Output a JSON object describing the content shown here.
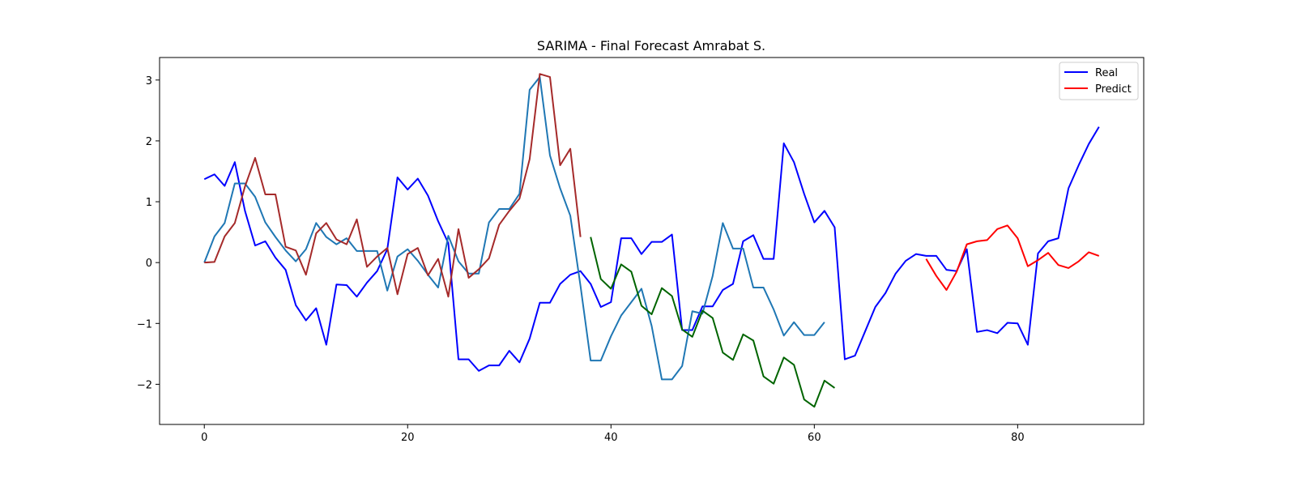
{
  "chart_data": {
    "type": "line",
    "title": "SARIMA - Final Forecast Amrabat S.",
    "xlabel": "",
    "ylabel": "",
    "xlim": [
      -4.4,
      92.4
    ],
    "ylim": [
      -2.66,
      3.37
    ],
    "xticks": [
      0,
      20,
      40,
      60,
      80
    ],
    "yticks": [
      -2,
      -1,
      0,
      1,
      2,
      3
    ],
    "grid": false,
    "legend": {
      "placement": "top-right",
      "entries": [
        "Real",
        "Predict"
      ]
    },
    "series": [
      {
        "name": "Real",
        "color": "#0000ff",
        "x_start": 0,
        "values": [
          1.37,
          1.45,
          1.26,
          1.65,
          0.85,
          0.28,
          0.35,
          0.08,
          -0.12,
          -0.7,
          -0.95,
          -0.75,
          -1.35,
          -0.36,
          -0.37,
          -0.56,
          -0.33,
          -0.14,
          0.22,
          1.4,
          1.2,
          1.38,
          1.1,
          0.68,
          0.32,
          -1.59,
          -1.59,
          -1.78,
          -1.69,
          -1.69,
          -1.45,
          -1.64,
          -1.25,
          -0.66,
          -0.66,
          -0.35,
          -0.2,
          -0.14,
          -0.35,
          -0.73,
          -0.65,
          0.4,
          0.4,
          0.14,
          0.34,
          0.34,
          0.46,
          -1.11,
          -1.11,
          -0.72,
          -0.72,
          -0.45,
          -0.35,
          0.35,
          0.45,
          0.06,
          0.06,
          1.96,
          1.65,
          1.13,
          0.66,
          0.85,
          0.58,
          -1.59,
          -1.53,
          -1.13,
          -0.73,
          -0.5,
          -0.18,
          0.03,
          0.14,
          0.11,
          0.11,
          -0.12,
          -0.14,
          0.22,
          -1.14,
          -1.11,
          -1.16,
          -0.99,
          -1.0,
          -1.35,
          0.15,
          0.35,
          0.4,
          1.22,
          1.6,
          1.95,
          2.23
        ]
      },
      {
        "name": "Predict",
        "color": "#ff0000",
        "x_start": 71,
        "values": [
          0.06,
          -0.22,
          -0.45,
          -0.15,
          0.3,
          0.35,
          0.37,
          0.55,
          0.61,
          0.4,
          -0.06,
          0.04,
          0.16,
          -0.04,
          -0.09,
          0.02,
          0.17,
          0.11
        ]
      },
      {
        "color": "#1f77b4",
        "x_start": 0,
        "values": [
          0.0,
          0.43,
          0.65,
          1.3,
          1.3,
          1.08,
          0.66,
          0.42,
          0.2,
          0.02,
          0.22,
          0.65,
          0.42,
          0.3,
          0.4,
          0.19,
          0.19,
          0.19,
          -0.46,
          0.1,
          0.22,
          0.03,
          -0.2,
          -0.41,
          0.44,
          0.02,
          -0.18,
          -0.18,
          0.66,
          0.88,
          0.88,
          1.13,
          2.84,
          3.05,
          1.76,
          1.22,
          0.77,
          -0.38,
          -1.61,
          -1.61,
          -1.21,
          -0.87,
          -0.65,
          -0.43,
          -1.04,
          -1.92,
          -1.92,
          -1.7,
          -0.8,
          -0.84,
          -0.22,
          0.65,
          0.23,
          0.23,
          -0.41,
          -0.41,
          -0.77,
          -1.2,
          -0.98,
          -1.19,
          -1.19,
          -0.98
        ]
      },
      {
        "color": "#a52a2a",
        "x_start": 0,
        "values": [
          0.0,
          0.01,
          0.43,
          0.65,
          1.25,
          1.72,
          1.12,
          1.12,
          0.26,
          0.2,
          -0.2,
          0.48,
          0.65,
          0.38,
          0.3,
          0.71,
          -0.07,
          0.1,
          0.24,
          -0.52,
          0.14,
          0.24,
          -0.21,
          0.06,
          -0.56,
          0.55,
          -0.25,
          -0.11,
          0.07,
          0.62,
          0.85,
          1.05,
          1.7,
          3.1,
          3.05,
          1.6,
          1.87,
          0.42
        ]
      },
      {
        "color": "#006400",
        "x_start": 38,
        "values": [
          0.42,
          -0.27,
          -0.43,
          -0.03,
          -0.15,
          -0.71,
          -0.85,
          -0.42,
          -0.55,
          -1.1,
          -1.22,
          -0.79,
          -0.91,
          -1.48,
          -1.6,
          -1.18,
          -1.28,
          -1.87,
          -1.99,
          -1.56,
          -1.68,
          -2.25,
          -2.37,
          -1.94,
          -2.06
        ]
      }
    ]
  }
}
